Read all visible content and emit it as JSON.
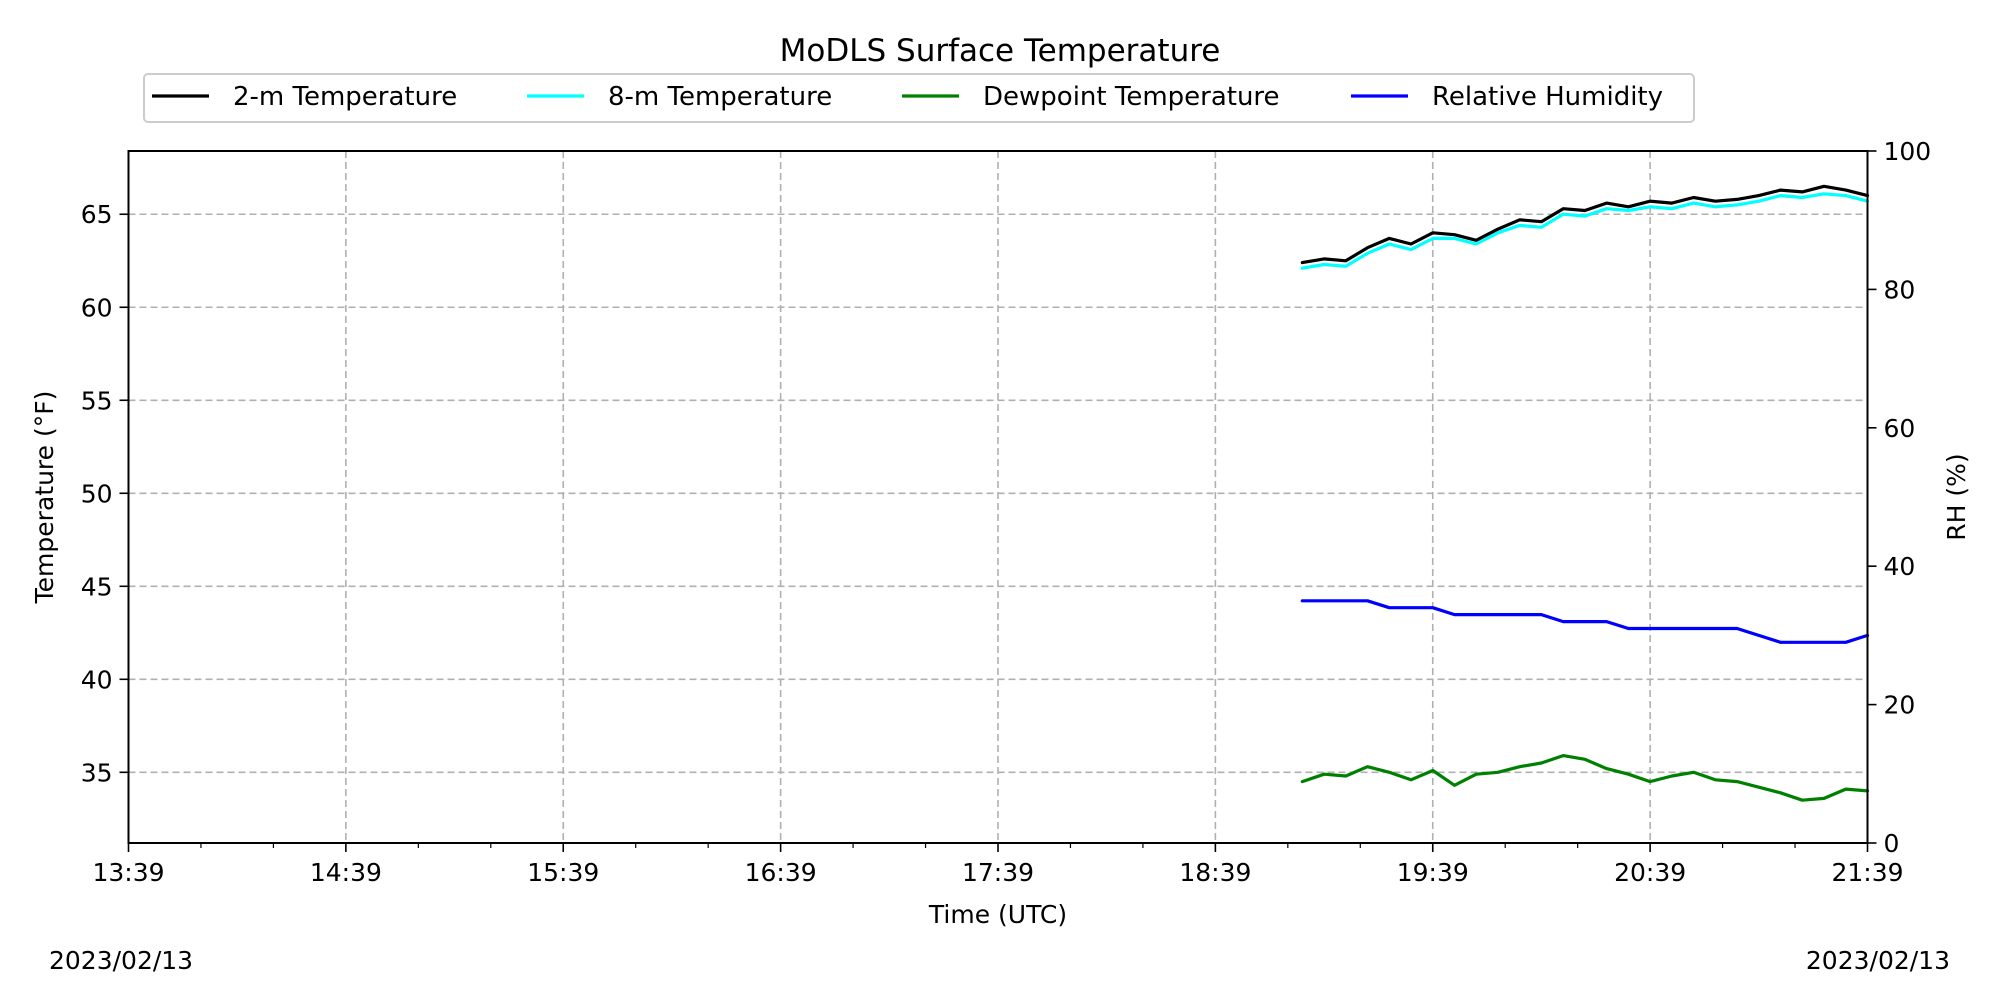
{
  "chart_data": {
    "type": "line",
    "title": "MoDLS Surface Temperature",
    "xlabel": "Time (UTC)",
    "ylabel": "Temperature ($^\\circ$F)",
    "ylabel_display": "Temperature (°F)",
    "y2label": "RH (%)",
    "x_ticks": [
      "13:39",
      "14:39",
      "15:39",
      "16:39",
      "17:39",
      "18:39",
      "19:39",
      "20:39",
      "21:39"
    ],
    "xlim": [
      "13:39",
      "21:39"
    ],
    "ylim": [
      31.2,
      68.4
    ],
    "y_ticks": [
      35,
      40,
      45,
      50,
      55,
      60,
      65
    ],
    "y2lim": [
      0,
      100
    ],
    "y2_ticks": [
      0,
      20,
      40,
      60,
      80,
      100
    ],
    "grid": true,
    "legend_position": "top-center",
    "date_start": "2023/02/13",
    "date_end": "2023/02/13",
    "series": [
      {
        "name": "2-m Temperature",
        "color": "#000000",
        "axis": "left",
        "x": [
          "19:03",
          "19:09",
          "19:15",
          "19:21",
          "19:27",
          "19:33",
          "19:39",
          "19:45",
          "19:51",
          "19:57",
          "20:03",
          "20:09",
          "20:15",
          "20:21",
          "20:27",
          "20:33",
          "20:39",
          "20:45",
          "20:51",
          "20:57",
          "21:03",
          "21:09",
          "21:15",
          "21:21",
          "21:27",
          "21:33",
          "21:39"
        ],
        "values": [
          62.4,
          62.6,
          62.5,
          63.2,
          63.7,
          63.4,
          64.0,
          63.9,
          63.6,
          64.2,
          64.7,
          64.6,
          65.3,
          65.2,
          65.6,
          65.4,
          65.7,
          65.6,
          65.9,
          65.7,
          65.8,
          66.0,
          66.3,
          66.2,
          66.5,
          66.3,
          66.0
        ]
      },
      {
        "name": "8-m Temperature",
        "color": "#00ffff",
        "axis": "left",
        "x": [
          "19:03",
          "19:09",
          "19:15",
          "19:21",
          "19:27",
          "19:33",
          "19:39",
          "19:45",
          "19:51",
          "19:57",
          "20:03",
          "20:09",
          "20:15",
          "20:21",
          "20:27",
          "20:33",
          "20:39",
          "20:45",
          "20:51",
          "20:57",
          "21:03",
          "21:09",
          "21:15",
          "21:21",
          "21:27",
          "21:33",
          "21:39"
        ],
        "values": [
          62.1,
          62.3,
          62.2,
          62.9,
          63.4,
          63.1,
          63.7,
          63.7,
          63.4,
          64.0,
          64.4,
          64.3,
          65.0,
          64.9,
          65.3,
          65.2,
          65.4,
          65.3,
          65.6,
          65.4,
          65.5,
          65.7,
          66.0,
          65.9,
          66.1,
          66.0,
          65.7
        ]
      },
      {
        "name": "Dewpoint Temperature",
        "color": "#008000",
        "axis": "left",
        "x": [
          "19:03",
          "19:09",
          "19:15",
          "19:21",
          "19:27",
          "19:33",
          "19:39",
          "19:45",
          "19:51",
          "19:57",
          "20:03",
          "20:09",
          "20:15",
          "20:21",
          "20:27",
          "20:33",
          "20:39",
          "20:45",
          "20:51",
          "20:57",
          "21:03",
          "21:09",
          "21:15",
          "21:21",
          "21:27",
          "21:33",
          "21:39"
        ],
        "values": [
          34.5,
          34.9,
          34.8,
          35.3,
          35.0,
          34.6,
          35.1,
          34.3,
          34.9,
          35.0,
          35.3,
          35.5,
          35.9,
          35.7,
          35.2,
          34.9,
          34.5,
          34.8,
          35.0,
          34.6,
          34.5,
          34.2,
          33.9,
          33.5,
          33.6,
          34.1,
          34.0
        ]
      },
      {
        "name": "Relative Humidity",
        "color": "#0000ff",
        "axis": "right",
        "x": [
          "19:03",
          "19:09",
          "19:15",
          "19:21",
          "19:27",
          "19:33",
          "19:39",
          "19:45",
          "19:51",
          "19:57",
          "20:03",
          "20:09",
          "20:15",
          "20:21",
          "20:27",
          "20:33",
          "20:39",
          "20:45",
          "20:51",
          "20:57",
          "21:03",
          "21:09",
          "21:15",
          "21:21",
          "21:27",
          "21:33",
          "21:39"
        ],
        "values": [
          35,
          35,
          35,
          35,
          34,
          34,
          34,
          33,
          33,
          33,
          33,
          33,
          32,
          32,
          32,
          31,
          31,
          31,
          31,
          31,
          31,
          30,
          29,
          29,
          29,
          29,
          30
        ]
      }
    ]
  }
}
